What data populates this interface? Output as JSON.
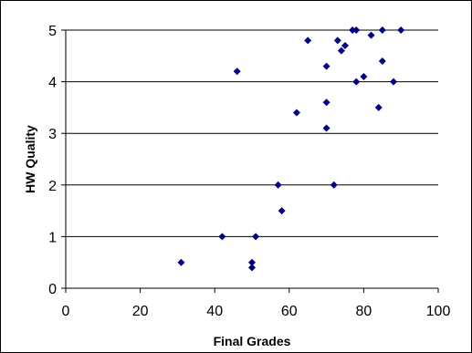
{
  "chart_data": {
    "type": "scatter",
    "title": "",
    "xlabel": "Final Grades",
    "ylabel": "HW Quality",
    "xlim": [
      0,
      100
    ],
    "ylim": [
      0,
      5
    ],
    "x_ticks": [
      0,
      20,
      40,
      60,
      80,
      100
    ],
    "y_ticks": [
      0,
      1,
      2,
      3,
      4,
      5
    ],
    "grid": "horizontal",
    "legend": "none",
    "marker": "diamond",
    "colors": {
      "marker": "#000080",
      "gridline": "#000000",
      "axis": "#000000"
    },
    "points": [
      {
        "x": 31,
        "y": 0.5
      },
      {
        "x": 42,
        "y": 1.0
      },
      {
        "x": 46,
        "y": 4.2
      },
      {
        "x": 50,
        "y": 0.5
      },
      {
        "x": 50,
        "y": 0.4
      },
      {
        "x": 51,
        "y": 1.0
      },
      {
        "x": 57,
        "y": 2.0
      },
      {
        "x": 58,
        "y": 1.5
      },
      {
        "x": 62,
        "y": 3.4
      },
      {
        "x": 65,
        "y": 4.8
      },
      {
        "x": 70,
        "y": 4.3
      },
      {
        "x": 70,
        "y": 3.6
      },
      {
        "x": 70,
        "y": 3.1
      },
      {
        "x": 72,
        "y": 2.0
      },
      {
        "x": 73,
        "y": 4.8
      },
      {
        "x": 74,
        "y": 4.6
      },
      {
        "x": 75,
        "y": 4.7
      },
      {
        "x": 77,
        "y": 5.0
      },
      {
        "x": 78,
        "y": 5.0
      },
      {
        "x": 78,
        "y": 4.0
      },
      {
        "x": 80,
        "y": 4.1
      },
      {
        "x": 82,
        "y": 4.9
      },
      {
        "x": 84,
        "y": 3.5
      },
      {
        "x": 85,
        "y": 5.0
      },
      {
        "x": 85,
        "y": 4.4
      },
      {
        "x": 88,
        "y": 4.0
      },
      {
        "x": 90,
        "y": 5.0
      }
    ]
  }
}
